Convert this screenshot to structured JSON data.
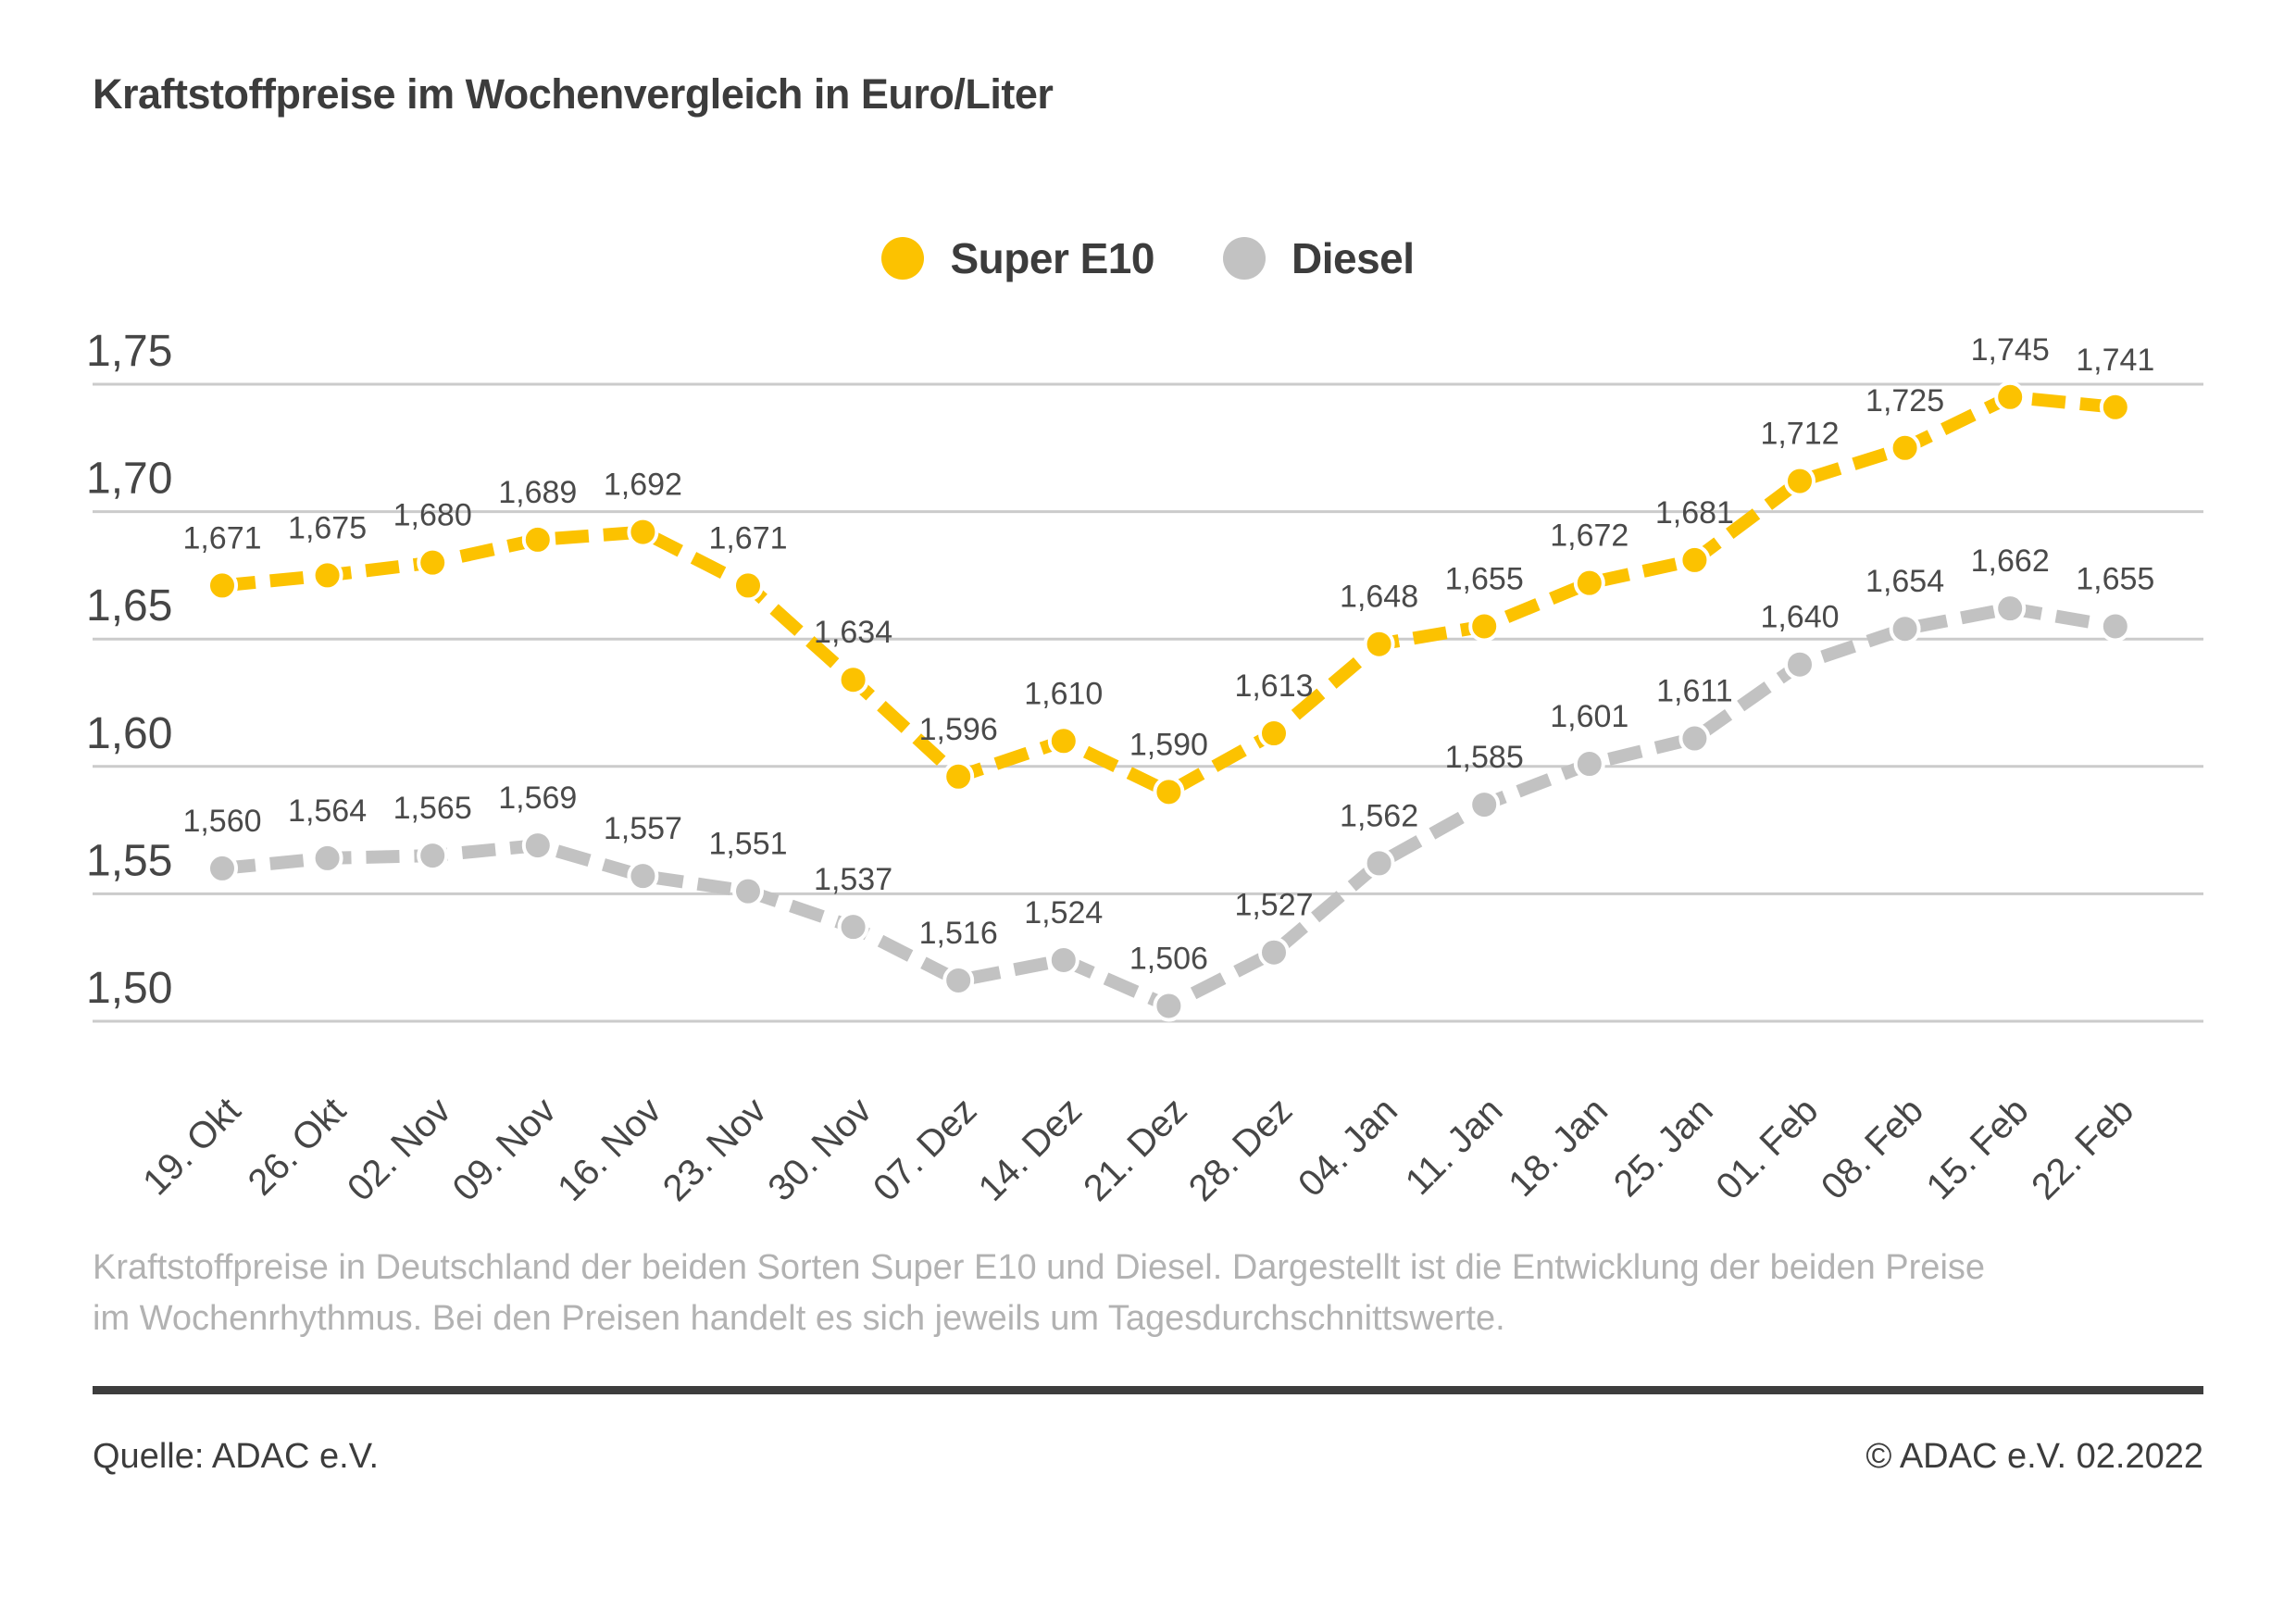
{
  "title": "Kraftstoffpreise im Wochenvergleich in Euro/Liter",
  "footnote": "Kraftstoffpreise in Deutschland der beiden Sorten Super E10 und Diesel. Dargestellt ist die Entwicklung der beiden Preise im Wochenrhythmus. Bei den Preisen handelt es sich jeweils um Tagesdurchschnittswerte.",
  "source_label": "Quelle: ADAC e.V.",
  "copyright": "© ADAC e.V. 02.2022",
  "colors": {
    "super_e10": "#fcc200",
    "diesel": "#c2c2c2",
    "gridline": "#cbcbcb",
    "axis_text": "#464646",
    "data_label_text": "#4a4a4a",
    "point_outline": "#ffffff"
  },
  "chart_data": {
    "type": "line",
    "title": "Kraftstoffpreise im Wochenvergleich in Euro/Liter",
    "xlabel": "",
    "ylabel": "Euro/Liter",
    "grid": true,
    "legend_position": "top-center",
    "ylim": [
      1.475,
      1.765
    ],
    "ytick_values": [
      1.75,
      1.7,
      1.65,
      1.6,
      1.55,
      1.5
    ],
    "ytick_labels": [
      "1,75",
      "1,70",
      "1,65",
      "1,60",
      "1,55",
      "1,50"
    ],
    "categories": [
      "19. Okt",
      "26. Okt",
      "02. Nov",
      "09. Nov",
      "16. Nov",
      "23. Nov",
      "30. Nov",
      "07. Dez",
      "14. Dez",
      "21. Dez",
      "28. Dez",
      "04. Jan",
      "11. Jan",
      "18. Jan",
      "25. Jan",
      "01. Feb",
      "08. Feb",
      "15. Feb",
      "22. Feb"
    ],
    "series": [
      {
        "name": "Super E10",
        "color": "#fcc200",
        "values": [
          1.671,
          1.675,
          1.68,
          1.689,
          1.692,
          1.671,
          1.634,
          1.596,
          1.61,
          1.59,
          1.613,
          1.648,
          1.655,
          1.672,
          1.681,
          1.712,
          1.725,
          1.745,
          1.741
        ],
        "labels": [
          "1,671",
          "1,675",
          "1,680",
          "1,689",
          "1,692",
          "1,671",
          "1,634",
          "1,596",
          "1,610",
          "1,590",
          "1,613",
          "1,648",
          "1,655",
          "1,672",
          "1,681",
          "1,712",
          "1,725",
          "1,745",
          "1,741"
        ]
      },
      {
        "name": "Diesel",
        "color": "#c2c2c2",
        "values": [
          1.56,
          1.564,
          1.565,
          1.569,
          1.557,
          1.551,
          1.537,
          1.516,
          1.524,
          1.506,
          1.527,
          1.562,
          1.585,
          1.601,
          1.611,
          1.64,
          1.654,
          1.662,
          1.655
        ],
        "labels": [
          "1,560",
          "1,564",
          "1,565",
          "1,569",
          "1,557",
          "1,551",
          "1,537",
          "1,516",
          "1,524",
          "1,506",
          "1,527",
          "1,562",
          "1,585",
          "1,601",
          "1,611",
          "1,640",
          "1,654",
          "1,662",
          "1,655"
        ]
      }
    ]
  }
}
